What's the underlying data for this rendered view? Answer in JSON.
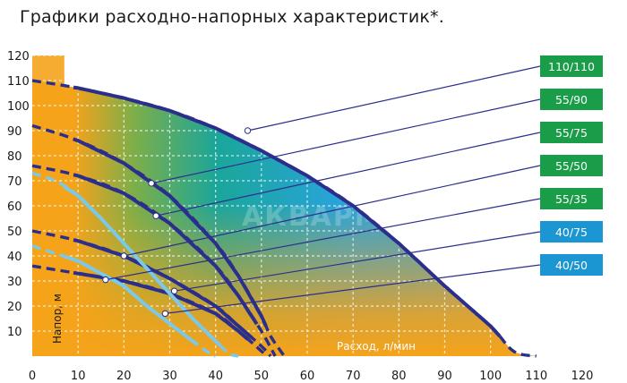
{
  "title": "Графики расходно-напорных характеристик*.",
  "watermark": "АКВАРМИКС",
  "chart_data": {
    "type": "line",
    "xlabel": "Расход, л/мин",
    "ylabel": "Напор, м",
    "xlim": [
      0,
      120
    ],
    "ylim": [
      0,
      120
    ],
    "xticks": [
      0,
      10,
      20,
      30,
      40,
      50,
      60,
      70,
      80,
      90,
      100,
      110,
      120
    ],
    "yticks": [
      10,
      20,
      30,
      40,
      50,
      60,
      70,
      80,
      90,
      100,
      110,
      120
    ],
    "colors": {
      "dark_curve": "#2c2e8c",
      "light_curve": "#7cc8e8",
      "badge_green": "#1a9d49",
      "badge_blue": "#1c96d2",
      "fill_orange": "#f5a31a",
      "fill_teal": "#1aa69a",
      "fill_blue": "#29a3da"
    },
    "series": [
      {
        "name": "110/110",
        "color_role": "dark",
        "label_at": [
          47,
          90
        ],
        "x": [
          0,
          10,
          20,
          30,
          40,
          50,
          60,
          70,
          80,
          90,
          100,
          105,
          110
        ],
        "y": [
          110,
          107,
          103,
          98,
          91,
          82,
          72,
          60,
          45,
          28,
          12,
          2,
          0
        ]
      },
      {
        "name": "55/90",
        "color_role": "dark",
        "label_at": [
          26,
          69
        ],
        "x": [
          0,
          10,
          20,
          30,
          40,
          45,
          50,
          52,
          55
        ],
        "y": [
          92,
          86,
          77,
          64,
          45,
          32,
          16,
          8,
          0
        ]
      },
      {
        "name": "55/75",
        "color_role": "dark",
        "label_at": [
          27,
          56
        ],
        "x": [
          0,
          10,
          20,
          30,
          40,
          45,
          50,
          53
        ],
        "y": [
          76,
          72,
          65,
          53,
          36,
          24,
          10,
          0
        ]
      },
      {
        "name": "55/50",
        "color_role": "dark",
        "label_at": [
          20,
          40
        ],
        "x": [
          0,
          10,
          20,
          30,
          40,
          45,
          50,
          52
        ],
        "y": [
          50,
          46,
          40,
          31,
          20,
          12,
          4,
          0
        ]
      },
      {
        "name": "55/35",
        "color_role": "dark",
        "label_at": [
          16,
          30.5
        ],
        "x": [
          0,
          10,
          20,
          30,
          40,
          45,
          50,
          51
        ],
        "y": [
          36,
          33,
          30,
          25,
          17,
          10,
          2,
          0
        ]
      },
      {
        "name": "40/75",
        "color_role": "light",
        "label_at": [
          31,
          26
        ],
        "x": [
          0,
          5,
          10,
          15,
          20,
          25,
          30,
          35,
          40,
          43,
          45
        ],
        "y": [
          73,
          70,
          64,
          55,
          45,
          35,
          25,
          15,
          6,
          1,
          0
        ]
      },
      {
        "name": "40/50",
        "color_role": "light",
        "label_at": [
          29,
          17
        ],
        "x": [
          0,
          5,
          10,
          15,
          20,
          25,
          30,
          35,
          38,
          40
        ],
        "y": [
          44,
          41,
          38,
          33,
          28,
          20,
          13,
          6,
          2,
          0
        ]
      }
    ],
    "badges": [
      {
        "text": "110/110",
        "color": "green"
      },
      {
        "text": "55/90",
        "color": "green"
      },
      {
        "text": "55/75",
        "color": "green"
      },
      {
        "text": "55/50",
        "color": "green"
      },
      {
        "text": "55/35",
        "color": "green"
      },
      {
        "text": "40/75",
        "color": "blue"
      },
      {
        "text": "40/50",
        "color": "blue"
      }
    ]
  }
}
